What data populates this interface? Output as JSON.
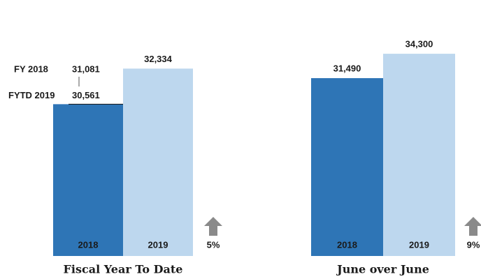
{
  "chart_data": [
    {
      "type": "bar",
      "title": "Fiscal Year To Date",
      "categories": [
        "2018",
        "2019"
      ],
      "values": [
        30561,
        32334
      ],
      "value_labels": [
        "30,561",
        "32,334"
      ],
      "colors": [
        "#2e75b6",
        "#bdd7ee"
      ],
      "ylim": [
        23000,
        34500
      ],
      "reference": {
        "text": "FYTD 2019"
      },
      "annotation": {
        "text": "FY 2018",
        "label": "31,081"
      },
      "change": "5%"
    },
    {
      "type": "bar",
      "title": "June over June",
      "categories": [
        "2018",
        "2019"
      ],
      "values": [
        31490,
        34300
      ],
      "value_labels": [
        "31,490",
        "34,300"
      ],
      "colors": [
        "#2e75b6",
        "#bdd7ee"
      ],
      "ylim": [
        11000,
        37600
      ],
      "change": "9%"
    }
  ]
}
